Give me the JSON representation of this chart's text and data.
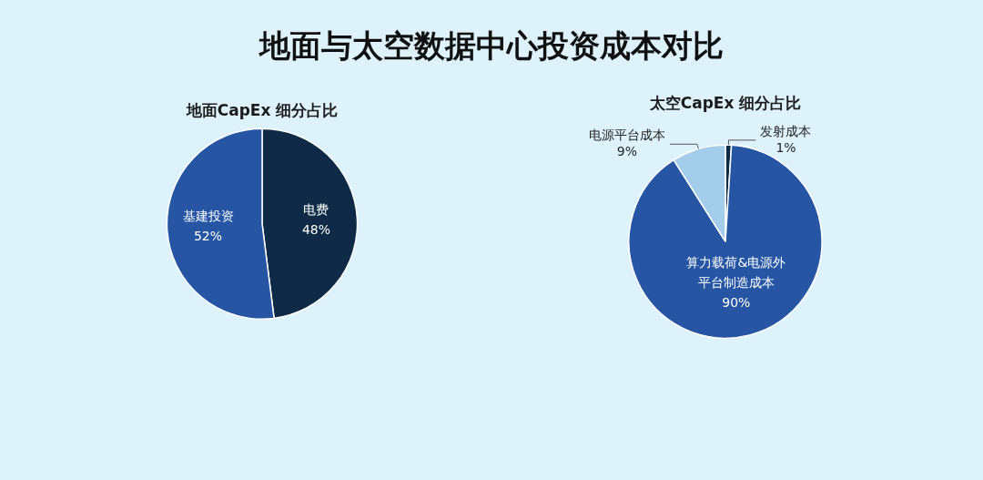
{
  "chart_data": [
    {
      "type": "other",
      "title": "地面与太空数据中心投资成本对比"
    },
    {
      "type": "pie",
      "title": "地面CapEx 细分占比",
      "categories": [
        "电费",
        "基建投资"
      ],
      "values": [
        48,
        52
      ],
      "colors": [
        "#0e2a47",
        "#2555a3"
      ],
      "value_labels": [
        "48%",
        "52%"
      ],
      "legend": false
    },
    {
      "type": "pie",
      "title": "太空CapEx 细分占比",
      "categories": [
        "发射成本",
        "算力载荷&电源外平台制造成本",
        "电源平台成本"
      ],
      "values": [
        1,
        90,
        9
      ],
      "colors": [
        "#0e2a47",
        "#2555a3",
        "#a4cdec"
      ],
      "value_labels": [
        "1%",
        "90%",
        "9%"
      ],
      "legend": false
    }
  ]
}
